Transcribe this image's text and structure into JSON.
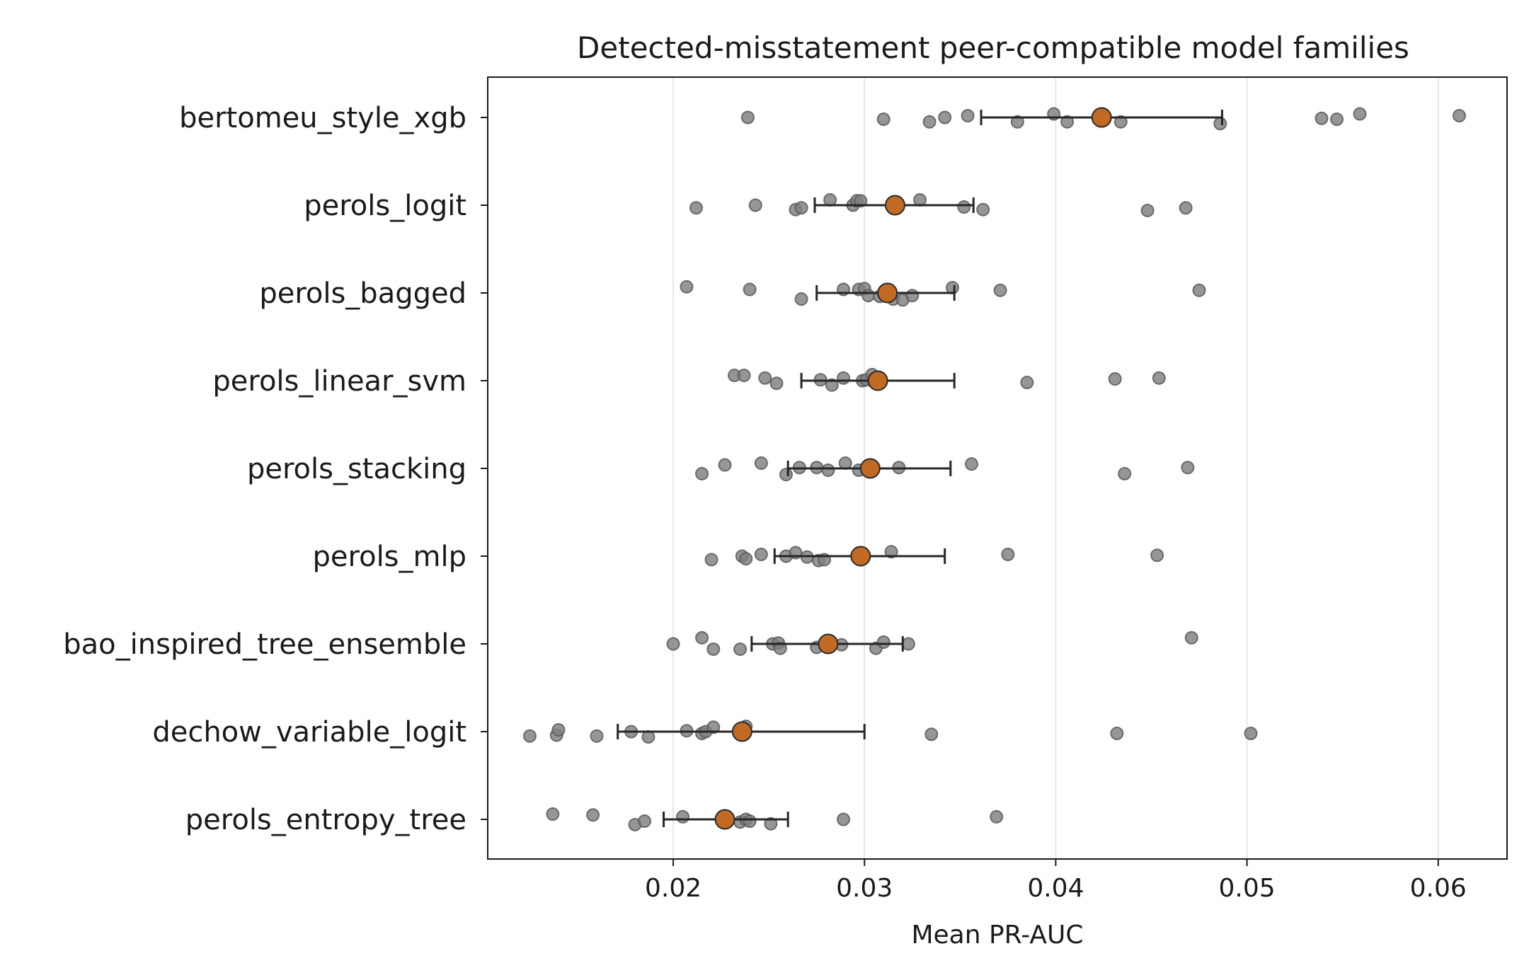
{
  "chart_data": {
    "type": "scatter",
    "title": "Detected-misstatement peer-compatible model families",
    "xlabel": "Mean PR-AUC",
    "ylabel": "",
    "xlim": [
      0.0103,
      0.0636
    ],
    "xticks": [
      0.02,
      0.03,
      0.04,
      0.05,
      0.06
    ],
    "xtick_labels": [
      "0.02",
      "0.03",
      "0.04",
      "0.05",
      "0.06"
    ],
    "grid": "vertical lines at x ticks",
    "legend": "none",
    "colors": {
      "points": "#7f7f7f",
      "mean": "#c06a24",
      "errorbar": "#262626",
      "grid": "#e6e6e6"
    },
    "categories": [
      "bertomeu_style_xgb",
      "perols_logit",
      "perols_bagged",
      "perols_linear_svm",
      "perols_stacking",
      "perols_mlp",
      "bao_inspired_tree_ensemble",
      "dechow_variable_logit",
      "perols_entropy_tree"
    ],
    "series": [
      {
        "category": "bertomeu_style_xgb",
        "mean": 0.0424,
        "ci": [
          0.0361,
          0.0487
        ],
        "points": [
          0.0239,
          0.031,
          0.0334,
          0.0342,
          0.0354,
          0.038,
          0.0399,
          0.0406,
          0.0434,
          0.0486,
          0.0539,
          0.0547,
          0.0559,
          0.0611
        ],
        "jitter": [
          0.0,
          0.02,
          0.05,
          0.0,
          -0.02,
          0.05,
          -0.04,
          0.05,
          0.05,
          0.07,
          0.01,
          0.02,
          -0.04,
          -0.02
        ]
      },
      {
        "category": "perols_logit",
        "mean": 0.0316,
        "ci": [
          0.0274,
          0.0357
        ],
        "points": [
          0.0212,
          0.0243,
          0.0264,
          0.0267,
          0.0282,
          0.0294,
          0.0296,
          0.0298,
          0.0329,
          0.0352,
          0.0362,
          0.0448,
          0.0468
        ],
        "jitter": [
          0.03,
          0.0,
          0.05,
          0.03,
          -0.06,
          0.0,
          -0.05,
          -0.05,
          -0.06,
          0.02,
          0.05,
          0.06,
          0.03
        ]
      },
      {
        "category": "perols_bagged",
        "mean": 0.0312,
        "ci": [
          0.0275,
          0.0347
        ],
        "points": [
          0.0207,
          0.024,
          0.0267,
          0.0289,
          0.0297,
          0.03,
          0.0302,
          0.0308,
          0.0315,
          0.032,
          0.0325,
          0.0346,
          0.0371,
          0.0475
        ],
        "jitter": [
          -0.07,
          -0.04,
          0.07,
          -0.04,
          -0.04,
          -0.05,
          0.03,
          0.04,
          0.07,
          0.08,
          0.03,
          -0.06,
          -0.03,
          -0.03
        ]
      },
      {
        "category": "perols_linear_svm",
        "mean": 0.0307,
        "ci": [
          0.0267,
          0.0347
        ],
        "points": [
          0.0232,
          0.0237,
          0.0248,
          0.0254,
          0.0277,
          0.0283,
          0.0289,
          0.0299,
          0.0301,
          0.0304,
          0.0385,
          0.0431,
          0.0454
        ],
        "jitter": [
          -0.06,
          -0.06,
          -0.03,
          0.03,
          -0.01,
          0.05,
          -0.03,
          0.0,
          -0.01,
          -0.07,
          0.02,
          -0.02,
          -0.03
        ]
      },
      {
        "category": "perols_stacking",
        "mean": 0.0303,
        "ci": [
          0.026,
          0.0345
        ],
        "points": [
          0.0215,
          0.0227,
          0.0246,
          0.0259,
          0.0266,
          0.0275,
          0.0281,
          0.029,
          0.0297,
          0.0318,
          0.0356,
          0.0436,
          0.0469
        ],
        "jitter": [
          0.06,
          -0.04,
          -0.06,
          0.07,
          -0.01,
          -0.01,
          0.02,
          -0.06,
          0.02,
          -0.01,
          -0.05,
          0.06,
          -0.01
        ]
      },
      {
        "category": "perols_mlp",
        "mean": 0.0298,
        "ci": [
          0.0253,
          0.0342
        ],
        "points": [
          0.022,
          0.0236,
          0.0238,
          0.0246,
          0.0259,
          0.0264,
          0.027,
          0.0276,
          0.0279,
          0.0314,
          0.0375,
          0.0453
        ],
        "jitter": [
          0.04,
          0.0,
          0.03,
          -0.02,
          0.0,
          -0.04,
          0.01,
          0.05,
          0.04,
          -0.05,
          -0.02,
          -0.01
        ]
      },
      {
        "category": "bao_inspired_tree_ensemble",
        "mean": 0.0281,
        "ci": [
          0.0241,
          0.032
        ],
        "points": [
          0.02,
          0.0215,
          0.0221,
          0.0235,
          0.0252,
          0.0255,
          0.0256,
          0.0275,
          0.0288,
          0.0306,
          0.031,
          0.0323,
          0.0471
        ],
        "jitter": [
          0.0,
          -0.07,
          0.06,
          0.06,
          0.0,
          -0.01,
          0.05,
          0.04,
          0.01,
          0.05,
          -0.02,
          0.0,
          -0.07
        ]
      },
      {
        "category": "dechow_variable_logit",
        "mean": 0.0236,
        "ci": [
          0.0171,
          0.03
        ],
        "points": [
          0.0125,
          0.0139,
          0.014,
          0.016,
          0.0178,
          0.0187,
          0.0207,
          0.0215,
          0.0217,
          0.0221,
          0.0238,
          0.0335,
          0.0432,
          0.0502
        ],
        "jitter": [
          0.05,
          0.04,
          -0.02,
          0.05,
          0.0,
          0.06,
          -0.01,
          0.02,
          0.0,
          -0.05,
          -0.06,
          0.03,
          0.02,
          0.02
        ]
      },
      {
        "category": "perols_entropy_tree",
        "mean": 0.0227,
        "ci": [
          0.0195,
          0.026
        ],
        "points": [
          0.0137,
          0.0158,
          0.018,
          0.0185,
          0.0205,
          0.0235,
          0.0238,
          0.024,
          0.0251,
          0.0289,
          0.0369
        ],
        "jitter": [
          -0.06,
          -0.05,
          0.06,
          0.02,
          -0.03,
          0.03,
          0.0,
          0.02,
          0.05,
          0.0,
          -0.03
        ]
      }
    ]
  }
}
